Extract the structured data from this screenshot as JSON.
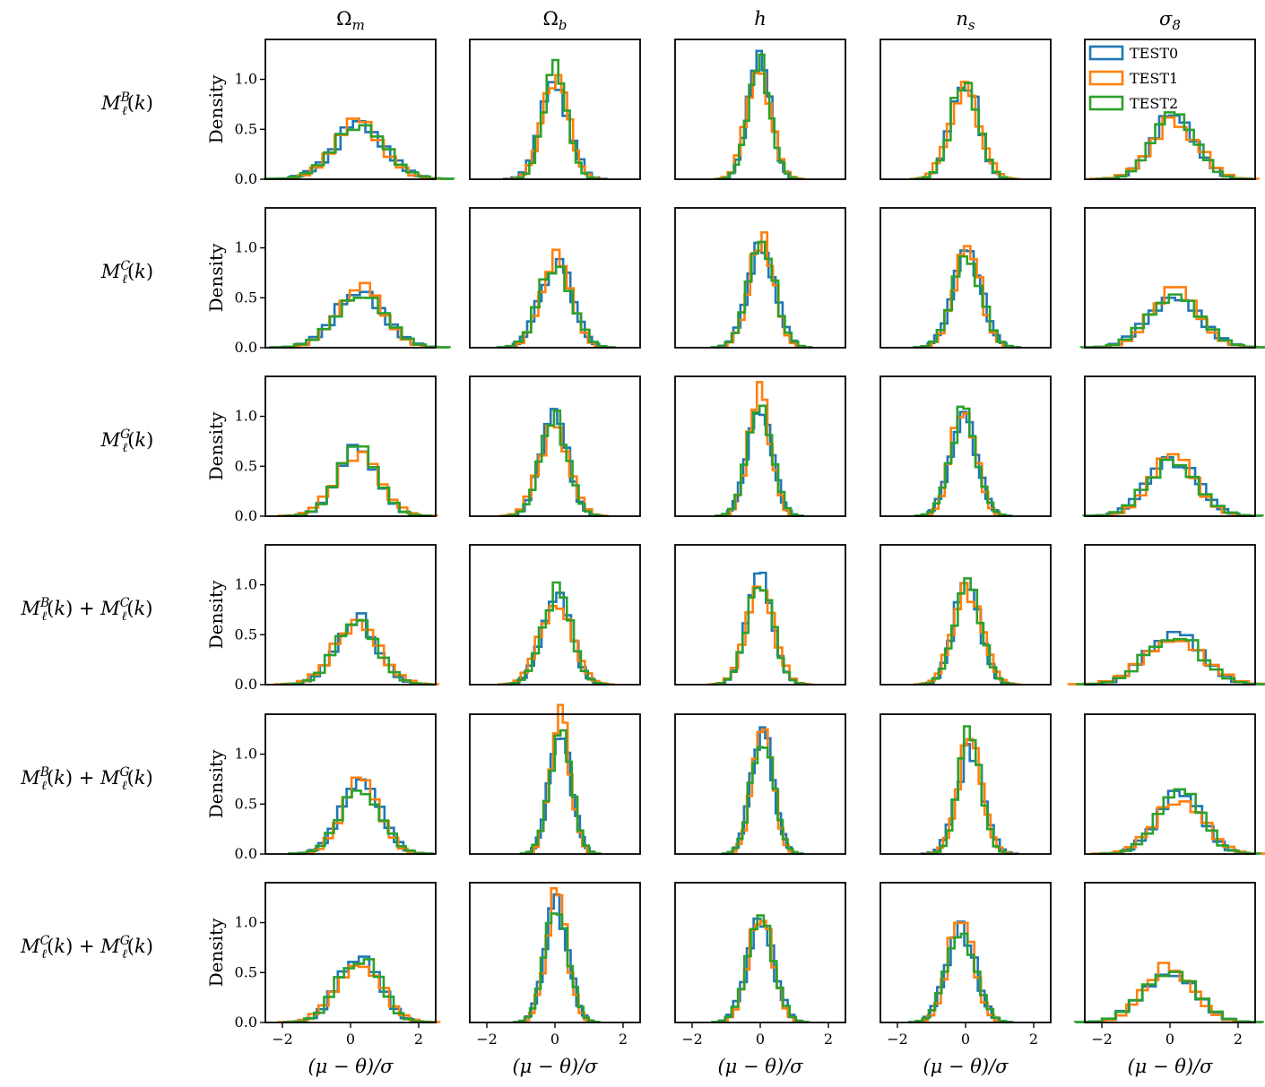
{
  "figure": {
    "col_titles": [
      "Ωm",
      "Ωb",
      "h",
      "ns",
      "σ8"
    ],
    "col_title_parts": [
      {
        "base": "Ω",
        "sub": "m"
      },
      {
        "base": "Ω",
        "sub": "b"
      },
      {
        "base": "h",
        "sub": ""
      },
      {
        "base": "n",
        "sub": "s"
      },
      {
        "base": "σ",
        "sub": "8"
      }
    ],
    "row_labels": [
      "M_ℓ^B(k)",
      "M_ℓ^C(k)",
      "M_ℓ^G(k)",
      "M_ℓ^B(k) + M_ℓ^C(k)",
      "M_ℓ^B(k) + M_ℓ^G(k)",
      "M_ℓ^C(k) + M_ℓ^G(k)"
    ],
    "row_label_parts": [
      [
        {
          "sup": "B"
        }
      ],
      [
        {
          "sup": "C"
        }
      ],
      [
        {
          "sup": "G"
        }
      ],
      [
        {
          "sup": "B"
        },
        {
          "sup": "C"
        }
      ],
      [
        {
          "sup": "B"
        },
        {
          "sup": "G"
        }
      ],
      [
        {
          "sup": "C"
        },
        {
          "sup": "G"
        }
      ]
    ],
    "ylabel": "Density",
    "xlabel": "(μ − θ)/σ",
    "xticks": [
      "−2",
      "0",
      "2"
    ],
    "yticks": [
      "0.0",
      "0.5",
      "1.0"
    ],
    "legend": [
      "TEST0",
      "TEST1",
      "TEST2"
    ]
  },
  "chart_data": {
    "type": "histogram-grid",
    "xlim": [
      -2.5,
      2.5
    ],
    "ylim": [
      0,
      1.4
    ],
    "xtick_values": [
      -2,
      0,
      2
    ],
    "ytick_values": [
      0,
      0.5,
      1.0
    ],
    "series_names": [
      "TEST0",
      "TEST1",
      "TEST2"
    ],
    "series_colors": [
      "#1f77b4",
      "#ff7f0e",
      "#2ca02c"
    ],
    "legend_location": "top-right of the σ8 panel in row 1",
    "grid": false,
    "panel_params": [
      [
        [
          0.3,
          0.7
        ],
        [
          0.05,
          0.38
        ],
        [
          0.0,
          0.35
        ],
        [
          0.0,
          0.42
        ],
        [
          0.15,
          0.65
        ]
      ],
      [
        [
          0.25,
          0.7
        ],
        [
          0.0,
          0.45
        ],
        [
          0.0,
          0.38
        ],
        [
          0.0,
          0.4
        ],
        [
          0.1,
          0.7
        ]
      ],
      [
        [
          0.3,
          0.6
        ],
        [
          0.05,
          0.4
        ],
        [
          0.05,
          0.35
        ],
        [
          0.0,
          0.38
        ],
        [
          0.15,
          0.7
        ]
      ],
      [
        [
          0.2,
          0.65
        ],
        [
          0.05,
          0.45
        ],
        [
          0.0,
          0.4
        ],
        [
          0.05,
          0.4
        ],
        [
          0.1,
          0.8
        ]
      ],
      [
        [
          0.25,
          0.55
        ],
        [
          0.1,
          0.3
        ],
        [
          0.0,
          0.3
        ],
        [
          0.05,
          0.36
        ],
        [
          0.2,
          0.7
        ]
      ],
      [
        [
          0.3,
          0.6
        ],
        [
          0.1,
          0.34
        ],
        [
          0.05,
          0.38
        ],
        [
          -0.1,
          0.4
        ],
        [
          0.0,
          0.72
        ]
      ]
    ],
    "notes": "Each panel shows three step histograms (TEST0, TEST1, TEST2) of the normalized residual; panel_params give approximate [mean, std] per panel."
  }
}
